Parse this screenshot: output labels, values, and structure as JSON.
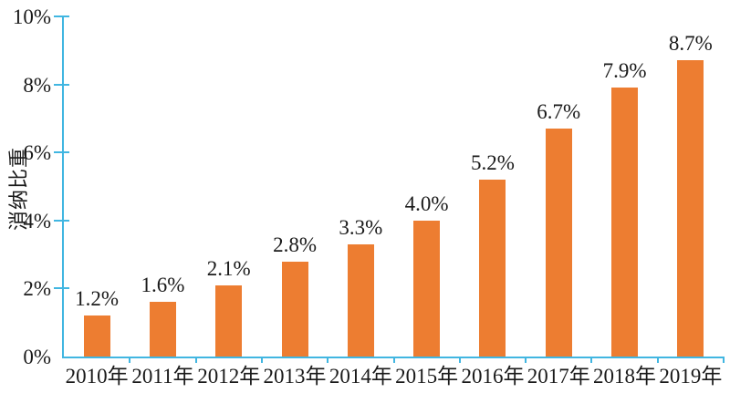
{
  "chart_data": {
    "type": "bar",
    "title": "",
    "xlabel": "",
    "ylabel": "消纳比重",
    "categories": [
      "2010年",
      "2011年",
      "2012年",
      "2013年",
      "2014年",
      "2015年",
      "2016年",
      "2017年",
      "2018年",
      "2019年"
    ],
    "values": [
      1.2,
      1.6,
      2.1,
      2.8,
      3.3,
      4.0,
      5.2,
      6.7,
      7.9,
      8.7
    ],
    "data_labels": [
      "1.2%",
      "1.6%",
      "2.1%",
      "2.8%",
      "3.3%",
      "4.0%",
      "5.2%",
      "6.7%",
      "7.9%",
      "8.7%"
    ],
    "y_ticks": [
      {
        "value": 0,
        "label": "0%"
      },
      {
        "value": 2,
        "label": "2%"
      },
      {
        "value": 4,
        "label": "4%"
      },
      {
        "value": 6,
        "label": "6%"
      },
      {
        "value": 8,
        "label": "8%"
      },
      {
        "value": 10,
        "label": "10%"
      }
    ],
    "ylim": [
      0,
      10
    ],
    "grid": false,
    "legend": "none",
    "colors": {
      "bar": "#ed7d31",
      "axis": "#41b6e1",
      "text": "#1a1a1a",
      "background": "#ffffff"
    }
  }
}
